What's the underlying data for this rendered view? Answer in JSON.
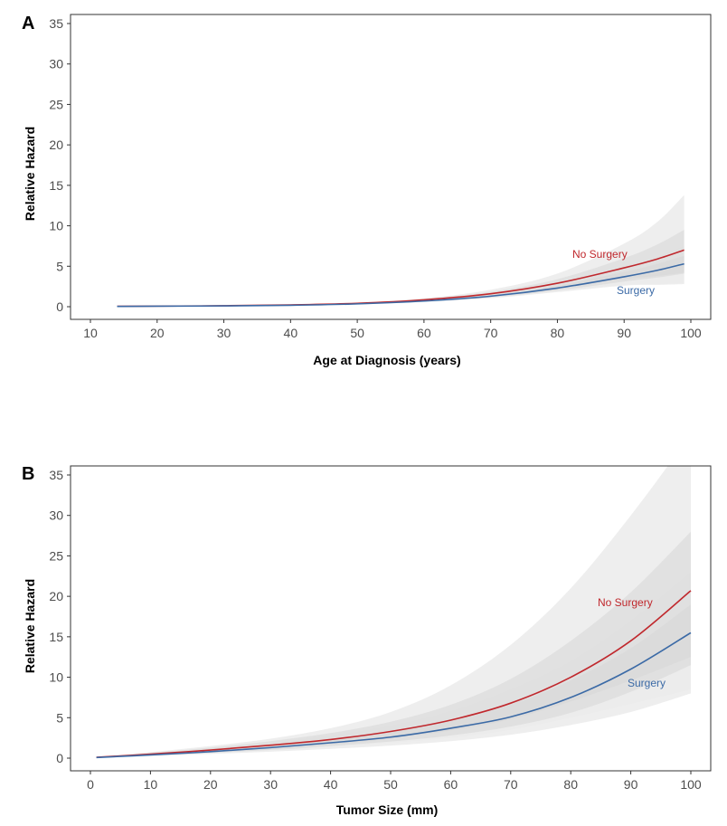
{
  "chart_data": [
    {
      "type": "line",
      "panel_label": "A",
      "xlabel": "Age at Diagnosis (years)",
      "ylabel": "Relative Hazard",
      "xlim": [
        10,
        100
      ],
      "ylim": [
        0,
        35
      ],
      "x_ticks": [
        10,
        20,
        30,
        40,
        50,
        60,
        70,
        80,
        90,
        100
      ],
      "y_ticks": [
        0,
        5,
        10,
        15,
        20,
        25,
        30,
        35
      ],
      "grid": false,
      "series": [
        {
          "name": "No Surgery",
          "color": "#c0282d",
          "x": [
            14,
            20,
            30,
            40,
            50,
            60,
            70,
            80,
            90,
            95,
            99
          ],
          "y": [
            0.05,
            0.07,
            0.12,
            0.22,
            0.42,
            0.85,
            1.6,
            2.9,
            4.8,
            5.9,
            7.0
          ],
          "ci_outer_upper": [
            0.06,
            0.08,
            0.14,
            0.26,
            0.5,
            1.05,
            2.1,
            4.1,
            7.8,
            10.5,
            13.8
          ],
          "ci_outer_lower": [
            0.04,
            0.06,
            0.1,
            0.18,
            0.35,
            0.7,
            1.25,
            2.0,
            2.7,
            2.8,
            2.9
          ],
          "ci_inner_upper": [
            0.055,
            0.075,
            0.13,
            0.24,
            0.46,
            0.95,
            1.85,
            3.4,
            6.0,
            7.7,
            9.5
          ],
          "ci_inner_lower": [
            0.045,
            0.065,
            0.11,
            0.2,
            0.38,
            0.75,
            1.35,
            2.3,
            3.4,
            3.8,
            4.2
          ]
        },
        {
          "name": "Surgery",
          "color": "#3b6aa6",
          "x": [
            14,
            20,
            30,
            40,
            50,
            60,
            70,
            80,
            90,
            95,
            99
          ],
          "y": [
            0.04,
            0.06,
            0.1,
            0.18,
            0.35,
            0.7,
            1.3,
            2.3,
            3.7,
            4.5,
            5.3
          ],
          "ci_outer_upper": [
            0.05,
            0.07,
            0.12,
            0.21,
            0.41,
            0.83,
            1.6,
            2.9,
            5.0,
            6.2,
            7.5
          ],
          "ci_outer_lower": [
            0.03,
            0.05,
            0.08,
            0.15,
            0.3,
            0.58,
            1.05,
            1.8,
            2.6,
            2.7,
            2.8
          ],
          "ci_inner_upper": [
            0.045,
            0.065,
            0.11,
            0.2,
            0.38,
            0.77,
            1.45,
            2.6,
            4.3,
            5.3,
            6.3
          ],
          "ci_inner_lower": [
            0.035,
            0.055,
            0.09,
            0.16,
            0.32,
            0.63,
            1.15,
            2.0,
            3.1,
            3.6,
            4.1
          ]
        }
      ]
    },
    {
      "type": "line",
      "panel_label": "B",
      "xlabel": "Tumor Size (mm)",
      "ylabel": "Relative Hazard",
      "xlim": [
        0,
        100
      ],
      "ylim": [
        0,
        35
      ],
      "x_ticks": [
        0,
        10,
        20,
        30,
        40,
        50,
        60,
        70,
        80,
        90,
        100
      ],
      "y_ticks": [
        0,
        5,
        10,
        15,
        20,
        25,
        30,
        35
      ],
      "grid": false,
      "series": [
        {
          "name": "No Surgery",
          "color": "#c0282d",
          "x": [
            1,
            10,
            20,
            30,
            40,
            50,
            60,
            70,
            80,
            90,
            100
          ],
          "y": [
            0.1,
            0.5,
            1.0,
            1.6,
            2.3,
            3.3,
            4.7,
            6.8,
            10.0,
            14.5,
            20.7
          ],
          "ci_outer_upper": [
            0.15,
            0.75,
            1.5,
            2.4,
            3.7,
            5.7,
            9.0,
            14.0,
            21.0,
            30.0,
            40.0
          ],
          "ci_outer_lower": [
            0.06,
            0.32,
            0.65,
            1.0,
            1.4,
            1.9,
            2.5,
            3.5,
            5.0,
            6.7,
            8.5
          ],
          "ci_inner_upper": [
            0.13,
            0.65,
            1.3,
            2.1,
            3.1,
            4.5,
            6.6,
            9.8,
            14.5,
            20.5,
            28.0
          ],
          "ci_inner_lower": [
            0.08,
            0.38,
            0.75,
            1.2,
            1.7,
            2.4,
            3.4,
            4.8,
            7.0,
            9.6,
            12.5
          ]
        },
        {
          "name": "Surgery",
          "color": "#3b6aa6",
          "x": [
            1,
            10,
            20,
            30,
            40,
            50,
            60,
            70,
            80,
            90,
            100
          ],
          "y": [
            0.08,
            0.4,
            0.8,
            1.3,
            1.9,
            2.6,
            3.7,
            5.1,
            7.5,
            11.0,
            15.5
          ],
          "ci_outer_upper": [
            0.12,
            0.6,
            1.2,
            1.9,
            2.8,
            4.0,
            5.8,
            8.5,
            12.0,
            17.0,
            23.0
          ],
          "ci_outer_lower": [
            0.05,
            0.26,
            0.52,
            0.8,
            1.15,
            1.55,
            2.1,
            2.9,
            4.1,
            5.7,
            8.0
          ],
          "ci_inner_upper": [
            0.1,
            0.5,
            1.0,
            1.6,
            2.3,
            3.3,
            4.6,
            6.6,
            9.6,
            13.6,
            19.0
          ],
          "ci_inner_lower": [
            0.06,
            0.32,
            0.65,
            1.0,
            1.5,
            2.05,
            2.8,
            3.9,
            5.6,
            8.2,
            11.5
          ]
        }
      ]
    }
  ],
  "colors": {
    "band_outer": "#ebebeb",
    "band_inner": "#d7d7d7",
    "axis": "#333333"
  }
}
